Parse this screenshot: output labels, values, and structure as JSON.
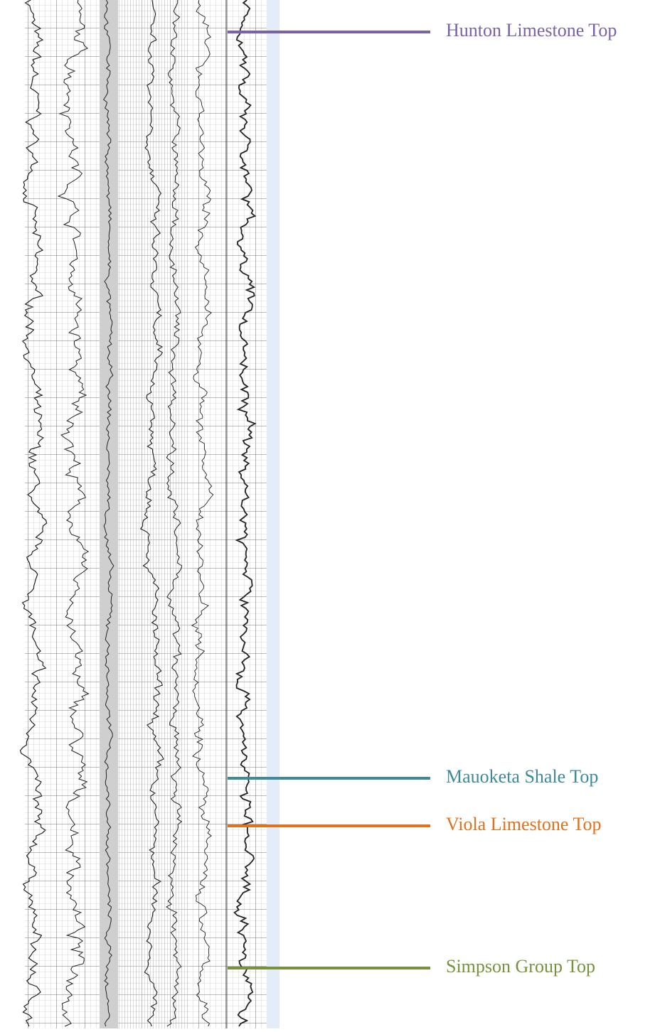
{
  "markers": [
    {
      "label": "Hunton Limestone Top",
      "color": "#7a62a6"
    },
    {
      "label": "Mauoketa Shale Top",
      "color": "#3b8a9d"
    },
    {
      "label": "Viola Limestone Top",
      "color": "#e2711d"
    },
    {
      "label": "Simpson Group Top",
      "color": "#76933c"
    }
  ]
}
